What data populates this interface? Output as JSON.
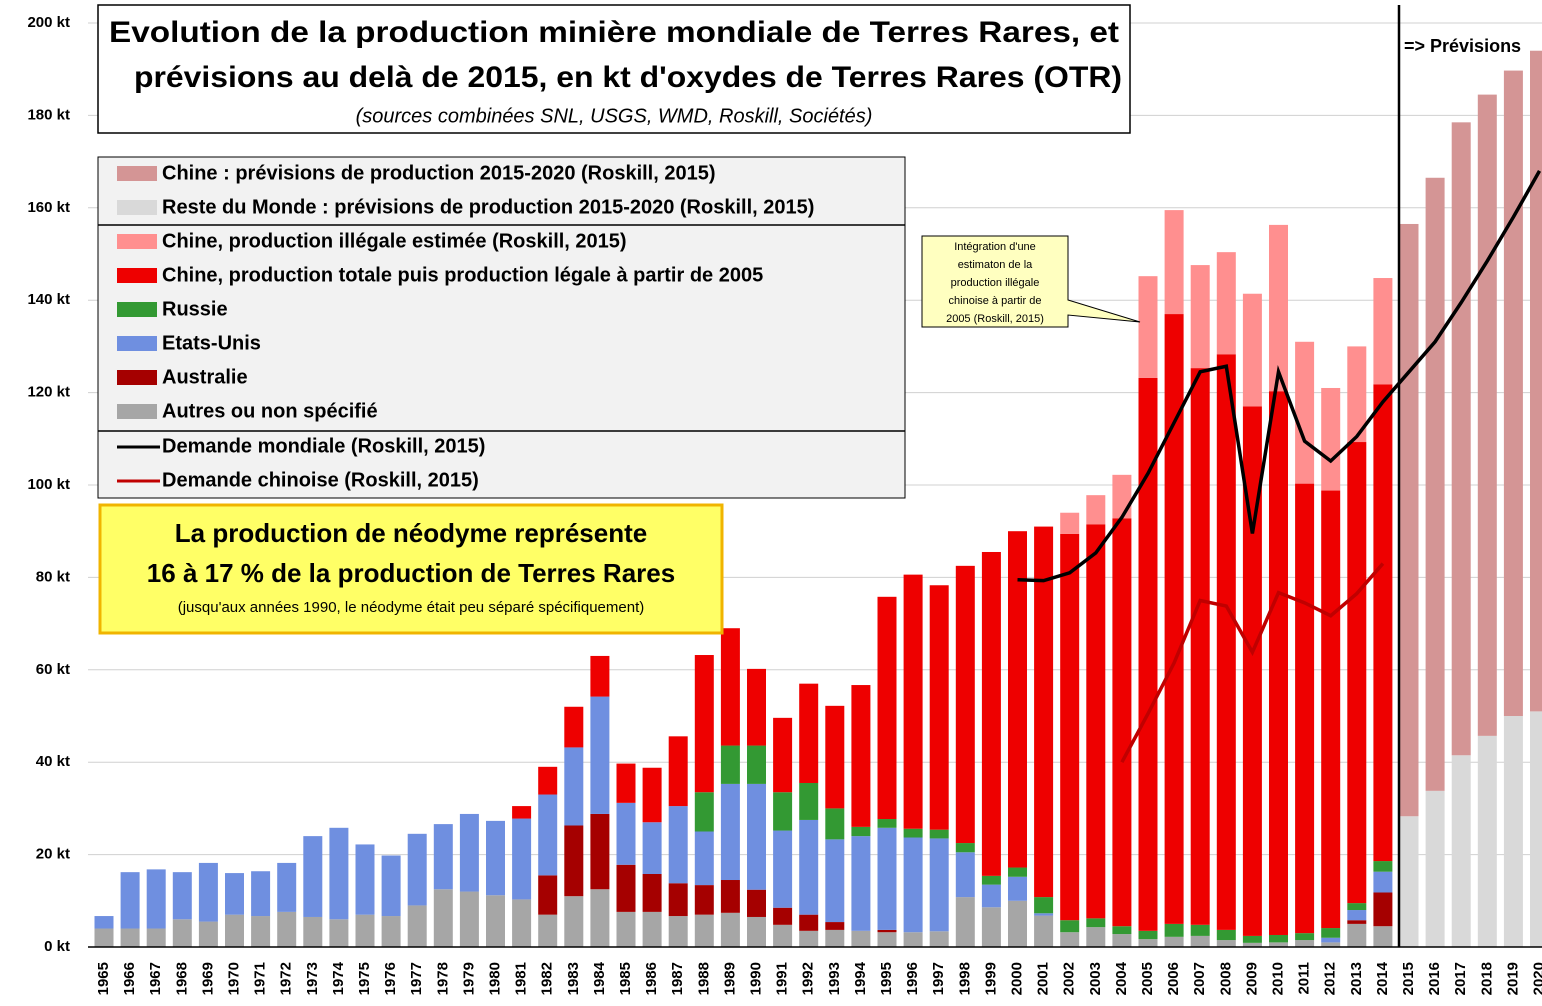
{
  "chart_data": {
    "type": "bar",
    "title": [
      "Evolution de la production minière mondiale de Terres Rares, et",
      "prévisions au delà de 2015, en kt d'oxydes de Terres Rares (OTR)"
    ],
    "subtitle": "(sources combinées SNL, USGS, WMD, Roskill, Sociétés)",
    "forecast_label": "=> Prévisions",
    "note": [
      "La production de néodyme représente",
      "16 à 17 % de la production de Terres Rares",
      "(jusqu'aux années 1990, le néodyme était peu séparé spécifiquement)"
    ],
    "callout": [
      "Intégration d'une",
      "estimaton de la",
      "production illégale",
      "chinoise à partir de",
      "2005  (Roskill, 2015)"
    ],
    "categories": [
      "1965",
      "1966",
      "1967",
      "1968",
      "1969",
      "1970",
      "1971",
      "1972",
      "1973",
      "1974",
      "1975",
      "1976",
      "1977",
      "1978",
      "1979",
      "1980",
      "1981",
      "1982",
      "1983",
      "1984",
      "1985",
      "1986",
      "1987",
      "1988",
      "1989",
      "1990",
      "1991",
      "1992",
      "1993",
      "1994",
      "1995",
      "1996",
      "1997",
      "1998",
      "1999",
      "2000",
      "2001",
      "2002",
      "2003",
      "2004",
      "2005",
      "2006",
      "2007",
      "2008",
      "2009",
      "2010",
      "2011",
      "2012",
      "2013",
      "2014",
      "2015",
      "2016",
      "2017",
      "2018",
      "2019",
      "2020"
    ],
    "ylim": [
      0,
      200
    ],
    "yticks": [
      {
        "value": 0,
        "label": "0 kt"
      },
      {
        "value": 20,
        "label": "20 kt"
      },
      {
        "value": 40,
        "label": "40 kt"
      },
      {
        "value": 60,
        "label": "60 kt"
      },
      {
        "value": 80,
        "label": "80 kt"
      },
      {
        "value": 100,
        "label": "100 kt"
      },
      {
        "value": 120,
        "label": "120 kt"
      },
      {
        "value": 140,
        "label": "140 kt"
      },
      {
        "value": 160,
        "label": "160 kt"
      },
      {
        "value": 180,
        "label": "180 kt"
      },
      {
        "value": 200,
        "label": "200 kt"
      }
    ],
    "grid": true,
    "series": [
      {
        "name": "Chine : prévisions de production 2015-2020 (Roskill, 2015)",
        "color": "#d49595",
        "type": "bar",
        "values": [
          null,
          null,
          null,
          null,
          null,
          null,
          null,
          null,
          null,
          null,
          null,
          null,
          null,
          null,
          null,
          null,
          null,
          null,
          null,
          null,
          null,
          null,
          null,
          null,
          null,
          null,
          null,
          null,
          null,
          null,
          null,
          null,
          null,
          null,
          null,
          null,
          null,
          null,
          null,
          null,
          null,
          null,
          null,
          null,
          null,
          null,
          null,
          null,
          null,
          null,
          128.2,
          132.7,
          137,
          138.8,
          139.7,
          143
        ]
      },
      {
        "name": "Reste du Monde : prévisions de production 2015-2020 (Roskill, 2015)",
        "color": "#d9d9d9",
        "type": "bar",
        "values": [
          null,
          null,
          null,
          null,
          null,
          null,
          null,
          null,
          null,
          null,
          null,
          null,
          null,
          null,
          null,
          null,
          null,
          null,
          null,
          null,
          null,
          null,
          null,
          null,
          null,
          null,
          null,
          null,
          null,
          null,
          null,
          null,
          null,
          null,
          null,
          null,
          null,
          null,
          null,
          null,
          null,
          null,
          null,
          null,
          null,
          null,
          null,
          null,
          null,
          null,
          28.3,
          33.8,
          41.5,
          45.7,
          50,
          51
        ]
      },
      {
        "name": "Chine, production illégale estimée (Roskill, 2015)",
        "color": "#ff8f8f",
        "type": "bar",
        "values": [
          null,
          null,
          null,
          null,
          null,
          null,
          null,
          null,
          null,
          null,
          null,
          null,
          null,
          null,
          null,
          null,
          null,
          null,
          null,
          null,
          null,
          null,
          null,
          null,
          null,
          null,
          null,
          null,
          null,
          null,
          null,
          null,
          null,
          null,
          null,
          null,
          null,
          4.6,
          6.3,
          9.4,
          22,
          22.5,
          22.3,
          22.1,
          24.4,
          36,
          30.7,
          22.2,
          20.7,
          23,
          null,
          null,
          null,
          null,
          null,
          null
        ]
      },
      {
        "name": "Chine, production totale puis production légale à partir de 2005",
        "color": "#ee0000",
        "type": "bar",
        "values": [
          null,
          null,
          null,
          null,
          null,
          null,
          null,
          null,
          null,
          null,
          null,
          null,
          null,
          null,
          null,
          null,
          2.7,
          6,
          8.8,
          8.8,
          8.5,
          11.8,
          15.1,
          29.7,
          25.4,
          16.6,
          16.1,
          21.5,
          22.2,
          30.7,
          48.1,
          55,
          52.9,
          60,
          70.1,
          72.8,
          80.2,
          83.6,
          85.3,
          88.3,
          119.7,
          132,
          120.5,
          124.6,
          114.6,
          117.7,
          97.3,
          94.7,
          99.8,
          103.2,
          null,
          null,
          null,
          null,
          null,
          null
        ]
      },
      {
        "name": "Russie",
        "color": "#339933",
        "type": "bar",
        "values": [
          null,
          null,
          null,
          null,
          null,
          null,
          null,
          null,
          null,
          null,
          null,
          null,
          null,
          null,
          null,
          null,
          null,
          null,
          null,
          null,
          null,
          null,
          null,
          8.5,
          8.3,
          8.3,
          8.3,
          8,
          6.7,
          2,
          1.9,
          1.9,
          1.9,
          2,
          1.9,
          2,
          3.5,
          2.6,
          1.9,
          1.7,
          1.8,
          2.8,
          2.4,
          2.2,
          1.5,
          1.6,
          1.5,
          2.1,
          1.5,
          2.3,
          null,
          null,
          null,
          null,
          null,
          null
        ]
      },
      {
        "name": "Etats-Unis",
        "color": "#6f8fe0",
        "type": "bar",
        "values": [
          2.7,
          12.2,
          12.8,
          10.2,
          12.7,
          9,
          9.7,
          10.6,
          17.5,
          19.8,
          15.2,
          13.1,
          15.5,
          14.1,
          16.8,
          16.1,
          17.5,
          17.5,
          16.9,
          25.4,
          13.4,
          11.2,
          16.7,
          11.6,
          20.8,
          22.9,
          16.7,
          20.5,
          17.9,
          20.5,
          22.1,
          20.5,
          20.1,
          9.7,
          4.9,
          5.2,
          0.5,
          null,
          null,
          null,
          null,
          null,
          null,
          null,
          null,
          null,
          null,
          1,
          2.2,
          4.5,
          null,
          null,
          null,
          null,
          null,
          null
        ]
      },
      {
        "name": "Australie",
        "color": "#a50000",
        "type": "bar",
        "values": [
          null,
          null,
          null,
          null,
          null,
          null,
          null,
          null,
          null,
          null,
          null,
          null,
          null,
          null,
          null,
          null,
          null,
          8.5,
          15.3,
          16.3,
          10.2,
          8.2,
          7.1,
          6.4,
          7.1,
          5.9,
          3.7,
          3.5,
          1.7,
          null,
          0.5,
          null,
          null,
          null,
          null,
          null,
          null,
          null,
          null,
          null,
          null,
          null,
          null,
          null,
          null,
          null,
          null,
          null,
          0.8,
          7.3,
          null,
          null,
          null,
          null,
          null,
          null
        ]
      },
      {
        "name": "Autres ou non spécifié",
        "color": "#a6a6a6",
        "type": "bar",
        "values": [
          4,
          4,
          4,
          6,
          5.5,
          7,
          6.7,
          7.6,
          6.5,
          6,
          7,
          6.7,
          9,
          12.5,
          12,
          11.2,
          10.3,
          7,
          11,
          12.5,
          7.6,
          7.6,
          6.7,
          7,
          7.4,
          6.5,
          4.8,
          3.5,
          3.7,
          3.5,
          3.2,
          3.2,
          3.4,
          10.8,
          8.6,
          10,
          6.8,
          3.2,
          4.3,
          2.8,
          1.7,
          2.2,
          2.4,
          1.5,
          0.9,
          1,
          1.5,
          1,
          5,
          4.5,
          null,
          null,
          null,
          null,
          null,
          null
        ]
      },
      {
        "name": "Demande mondiale (Roskill, 2015)",
        "color": "#000000",
        "type": "line",
        "values": [
          null,
          null,
          null,
          null,
          null,
          null,
          null,
          null,
          null,
          null,
          null,
          null,
          null,
          null,
          null,
          null,
          null,
          null,
          null,
          null,
          null,
          null,
          null,
          null,
          null,
          null,
          null,
          null,
          null,
          null,
          null,
          null,
          null,
          null,
          null,
          79.5,
          79.3,
          81,
          85.3,
          93,
          102.5,
          113.5,
          124.5,
          125.7,
          89.5,
          124.5,
          109.5,
          105.2,
          110.5,
          118,
          124.5,
          131,
          139.5,
          148.5,
          158,
          168
        ]
      },
      {
        "name": "Demande chinoise (Roskill, 2015)",
        "color": "#c00000",
        "type": "line",
        "values": [
          null,
          null,
          null,
          null,
          null,
          null,
          null,
          null,
          null,
          null,
          null,
          null,
          null,
          null,
          null,
          null,
          null,
          null,
          null,
          null,
          null,
          null,
          null,
          null,
          null,
          null,
          null,
          null,
          null,
          null,
          null,
          null,
          null,
          null,
          null,
          null,
          null,
          null,
          null,
          40,
          50.5,
          61.5,
          75,
          73.8,
          63.8,
          76.7,
          74.5,
          71.7,
          76.5,
          83,
          null,
          null,
          null,
          null,
          null,
          null
        ]
      }
    ]
  }
}
